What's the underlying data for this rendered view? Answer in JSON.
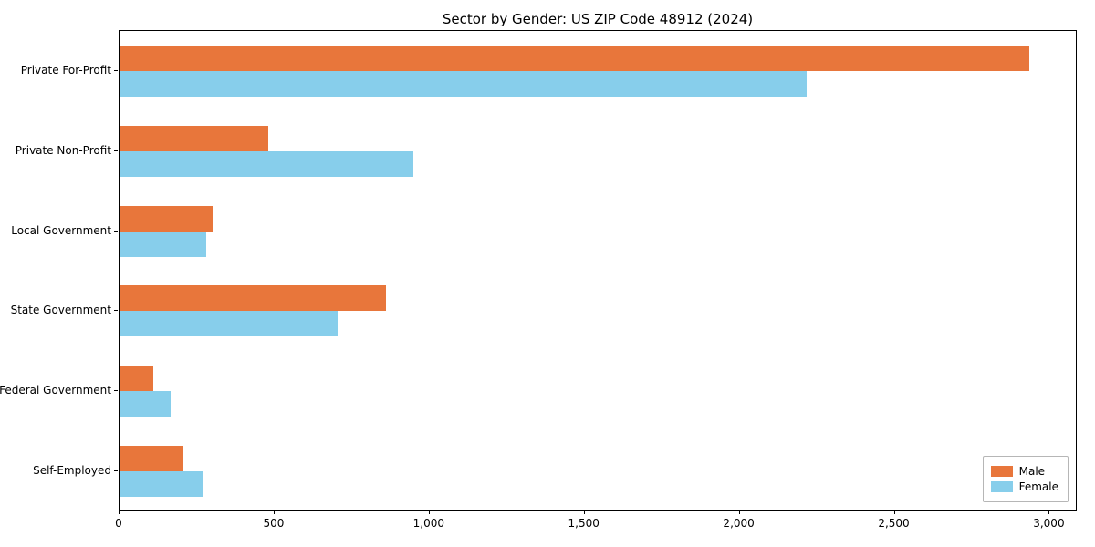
{
  "chart_data": {
    "type": "bar",
    "orientation": "horizontal",
    "title": "Sector by Gender: US ZIP Code 48912 (2024)",
    "categories": [
      "Private For-Profit",
      "Private Non-Profit",
      "Local Government",
      "State Government",
      "Federal Government",
      "Self-Employed"
    ],
    "series": [
      {
        "name": "Male",
        "color": "#e8763b",
        "values": [
          2940,
          480,
          300,
          860,
          110,
          205
        ]
      },
      {
        "name": "Female",
        "color": "#87ceeb",
        "values": [
          2220,
          950,
          280,
          705,
          165,
          270
        ]
      }
    ],
    "xlim": [
      0,
      3090
    ],
    "xticks": [
      0,
      500,
      1000,
      1500,
      2000,
      2500,
      3000
    ],
    "xtick_labels": [
      "0",
      "500",
      "1,000",
      "1,500",
      "2,000",
      "2,500",
      "3,000"
    ],
    "xlabel": "",
    "ylabel": "",
    "grid": false,
    "legend_position": "lower right",
    "frame_color": "#000000",
    "background_color": "#ffffff"
  }
}
